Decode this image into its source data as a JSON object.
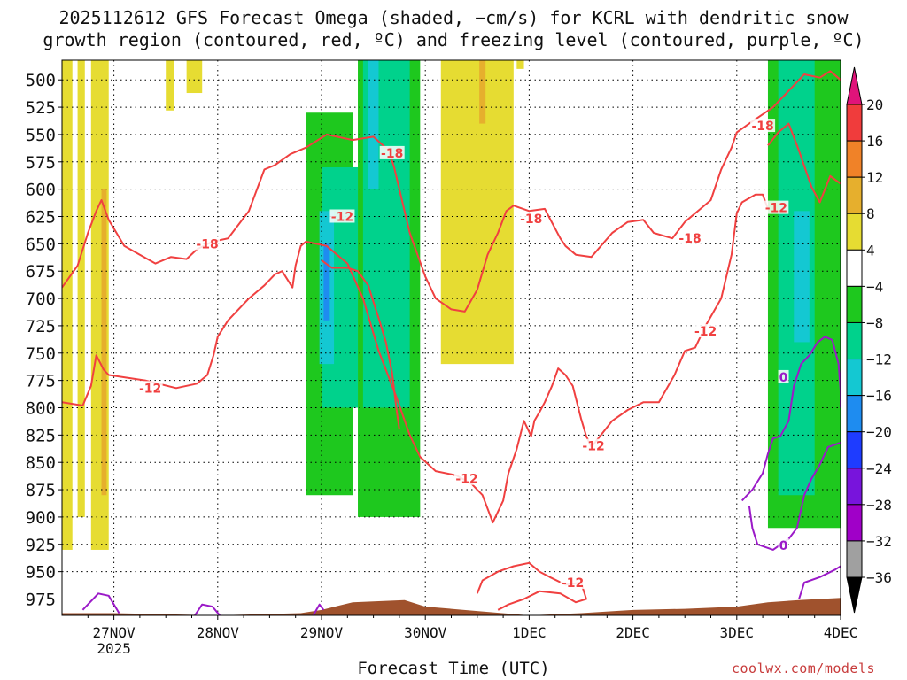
{
  "chart_data": {
    "type": "heatmap",
    "title": "2025112612 GFS Forecast Omega (shaded, −cm/s) for KCRL with dendritic snow",
    "subtitle": "growth region (contoured, red, ºC) and freezing level (contoured, purple, ºC)",
    "xlabel": "Forecast Time (UTC)",
    "ylabel": "",
    "x_ticks": [
      "27NOV",
      "28NOV",
      "29NOV",
      "30NOV",
      "1DEC",
      "2DEC",
      "3DEC",
      "4DEC"
    ],
    "x_tick_sublabel": "2025",
    "x_range_days": [
      26.5,
      34.0
    ],
    "y_ticks": [
      500,
      525,
      550,
      575,
      600,
      625,
      650,
      675,
      700,
      725,
      750,
      775,
      800,
      825,
      850,
      875,
      900,
      925,
      950,
      975
    ],
    "y_range_hpa": [
      482,
      990
    ],
    "grid": true,
    "colorbar": {
      "labels": [
        "20",
        "16",
        "12",
        "8",
        "4",
        "−4",
        "−8",
        "−12",
        "−16",
        "−20",
        "−24",
        "−28",
        "−32",
        "−36"
      ],
      "bins": [
        {
          "min": 20,
          "color": "#e0137a"
        },
        {
          "min": 16,
          "max": 20,
          "color": "#f03c3c"
        },
        {
          "min": 12,
          "max": 16,
          "color": "#f08228"
        },
        {
          "min": 8,
          "max": 12,
          "color": "#e6af2d"
        },
        {
          "min": 4,
          "max": 8,
          "color": "#e6dc32"
        },
        {
          "min": -4,
          "max": 4,
          "color": "#ffffff"
        },
        {
          "min": -8,
          "max": -4,
          "color": "#1ec81e"
        },
        {
          "min": -12,
          "max": -8,
          "color": "#00d28c"
        },
        {
          "min": -16,
          "max": -12,
          "color": "#14c8d2"
        },
        {
          "min": -20,
          "max": -16,
          "color": "#1e8cf0"
        },
        {
          "min": -24,
          "max": -20,
          "color": "#1e3cff"
        },
        {
          "min": -28,
          "max": -24,
          "color": "#7814dc"
        },
        {
          "min": -32,
          "max": -28,
          "color": "#a000c8"
        },
        {
          "min": -36,
          "max": -32,
          "color": "#a0a0a0"
        },
        {
          "max": -36,
          "color": "#000000"
        }
      ]
    },
    "contour_labels": {
      "dgz_minus12": "-12",
      "dgz_minus18": "-18",
      "freezing": "0"
    },
    "dgz_lower_minus12": [
      [
        26.5,
        795
      ],
      [
        26.7,
        798
      ],
      [
        26.78,
        780
      ],
      [
        26.83,
        752
      ],
      [
        26.9,
        765
      ],
      [
        26.95,
        770
      ],
      [
        27.3,
        775
      ],
      [
        27.6,
        782
      ],
      [
        27.8,
        778
      ],
      [
        27.9,
        770
      ],
      [
        27.96,
        752
      ],
      [
        28.0,
        735
      ],
      [
        28.1,
        720
      ],
      [
        28.3,
        700
      ],
      [
        28.45,
        688
      ],
      [
        28.55,
        678
      ],
      [
        28.62,
        675
      ],
      [
        28.72,
        690
      ],
      [
        28.75,
        670
      ],
      [
        28.8,
        652
      ],
      [
        28.85,
        648
      ],
      [
        29.05,
        652
      ],
      [
        29.25,
        668
      ],
      [
        29.4,
        700
      ],
      [
        29.55,
        748
      ],
      [
        29.72,
        790
      ],
      [
        29.85,
        825
      ],
      [
        29.95,
        845
      ],
      [
        30.1,
        858
      ],
      [
        30.3,
        862
      ],
      [
        30.45,
        870
      ],
      [
        30.55,
        880
      ],
      [
        30.65,
        905
      ],
      [
        30.75,
        885
      ],
      [
        30.8,
        860
      ],
      [
        30.88,
        838
      ],
      [
        30.95,
        812
      ],
      [
        31.02,
        826
      ],
      [
        31.05,
        812
      ],
      [
        31.1,
        804
      ],
      [
        31.15,
        795
      ],
      [
        31.22,
        780
      ],
      [
        31.28,
        764
      ],
      [
        31.35,
        770
      ],
      [
        31.42,
        780
      ],
      [
        31.5,
        810
      ],
      [
        31.55,
        826
      ],
      [
        31.6,
        836
      ],
      [
        31.8,
        812
      ],
      [
        31.95,
        802
      ],
      [
        32.1,
        795
      ],
      [
        32.25,
        795
      ],
      [
        32.4,
        770
      ],
      [
        32.5,
        748
      ],
      [
        32.6,
        745
      ],
      [
        32.7,
        725
      ],
      [
        32.85,
        700
      ],
      [
        32.95,
        660
      ],
      [
        33.0,
        622
      ],
      [
        33.05,
        612
      ],
      [
        33.18,
        605
      ],
      [
        33.25,
        605
      ],
      [
        33.3,
        618
      ]
    ],
    "dgz_upper_minus18": [
      [
        26.5,
        690
      ],
      [
        26.65,
        670
      ],
      [
        26.75,
        640
      ],
      [
        26.83,
        620
      ],
      [
        26.88,
        610
      ],
      [
        26.95,
        628
      ],
      [
        27.1,
        652
      ],
      [
        27.25,
        660
      ],
      [
        27.4,
        668
      ],
      [
        27.55,
        662
      ],
      [
        27.7,
        664
      ],
      [
        27.8,
        655
      ],
      [
        27.95,
        648
      ],
      [
        28.1,
        645
      ],
      [
        28.3,
        620
      ],
      [
        28.45,
        582
      ],
      [
        28.55,
        578
      ],
      [
        28.7,
        568
      ],
      [
        28.85,
        562
      ],
      [
        29.05,
        550
      ],
      [
        29.3,
        555
      ],
      [
        29.5,
        552
      ],
      [
        29.65,
        565
      ],
      [
        29.7,
        580
      ],
      [
        29.85,
        640
      ],
      [
        30.0,
        680
      ],
      [
        30.1,
        700
      ],
      [
        30.25,
        710
      ],
      [
        30.38,
        712
      ],
      [
        30.5,
        692
      ],
      [
        30.6,
        660
      ],
      [
        30.7,
        640
      ],
      [
        30.78,
        620
      ],
      [
        30.85,
        615
      ],
      [
        31.0,
        620
      ],
      [
        31.15,
        618
      ],
      [
        31.3,
        645
      ],
      [
        31.35,
        652
      ],
      [
        31.45,
        660
      ],
      [
        31.6,
        662
      ],
      [
        31.8,
        640
      ],
      [
        31.95,
        630
      ],
      [
        32.1,
        628
      ],
      [
        32.2,
        640
      ],
      [
        32.38,
        645
      ],
      [
        32.5,
        630
      ],
      [
        32.65,
        618
      ],
      [
        32.75,
        610
      ],
      [
        32.85,
        582
      ],
      [
        32.95,
        562
      ],
      [
        33.0,
        548
      ],
      [
        33.15,
        538
      ],
      [
        33.35,
        525
      ],
      [
        33.5,
        510
      ],
      [
        33.65,
        495
      ],
      [
        33.8,
        498
      ],
      [
        33.9,
        492
      ],
      [
        34.0,
        500
      ]
    ],
    "dgz_inner_minus12": [
      [
        29.0,
        665
      ],
      [
        29.1,
        672
      ],
      [
        29.25,
        672
      ],
      [
        29.35,
        675
      ],
      [
        29.45,
        688
      ],
      [
        29.55,
        718
      ],
      [
        29.62,
        740
      ],
      [
        29.68,
        768
      ],
      [
        29.72,
        800
      ],
      [
        29.75,
        820
      ]
    ],
    "dgz_right_minus18": [
      [
        33.3,
        560
      ],
      [
        33.4,
        548
      ],
      [
        33.5,
        540
      ],
      [
        33.6,
        565
      ],
      [
        33.72,
        598
      ],
      [
        33.8,
        612
      ],
      [
        33.9,
        588
      ],
      [
        34.0,
        595
      ]
    ],
    "dgz_surface_minus12": [
      [
        30.5,
        970
      ],
      [
        30.55,
        958
      ],
      [
        30.7,
        950
      ],
      [
        30.85,
        945
      ],
      [
        31.0,
        942
      ],
      [
        31.1,
        950
      ],
      [
        31.2,
        955
      ],
      [
        31.35,
        962
      ],
      [
        31.5,
        960
      ],
      [
        31.55,
        975
      ],
      [
        31.45,
        978
      ],
      [
        31.3,
        970
      ],
      [
        31.1,
        968
      ],
      [
        30.95,
        975
      ],
      [
        30.8,
        980
      ],
      [
        30.7,
        985
      ]
    ],
    "freezing_level_0": [
      [
        26.7,
        985
      ],
      [
        26.85,
        970
      ],
      [
        26.95,
        972
      ],
      [
        27.05,
        988
      ]
    ],
    "freezing_level_0_b": [
      [
        27.78,
        990
      ],
      [
        27.85,
        980
      ],
      [
        27.95,
        982
      ],
      [
        28.02,
        990
      ]
    ],
    "freezing_level_0_c": [
      [
        28.92,
        990
      ],
      [
        28.98,
        980
      ],
      [
        29.02,
        985
      ]
    ],
    "freezing_level_0_right": [
      [
        33.05,
        885
      ],
      [
        33.15,
        875
      ],
      [
        33.25,
        860
      ],
      [
        33.3,
        842
      ],
      [
        33.35,
        828
      ],
      [
        33.42,
        826
      ],
      [
        33.5,
        812
      ],
      [
        33.55,
        780
      ],
      [
        33.62,
        760
      ],
      [
        33.7,
        752
      ],
      [
        33.78,
        740
      ],
      [
        33.85,
        735
      ],
      [
        33.92,
        738
      ],
      [
        33.98,
        760
      ],
      [
        34.0,
        785
      ],
      [
        34.0,
        800
      ]
    ],
    "freezing_level_0_right_lower": [
      [
        33.12,
        890
      ],
      [
        33.15,
        910
      ],
      [
        33.2,
        925
      ],
      [
        33.35,
        930
      ],
      [
        33.5,
        920
      ],
      [
        33.58,
        910
      ],
      [
        33.65,
        880
      ],
      [
        33.72,
        865
      ],
      [
        33.8,
        852
      ],
      [
        33.88,
        836
      ],
      [
        34.0,
        832
      ]
    ],
    "freezing_level_0_surface": [
      [
        33.6,
        975
      ],
      [
        33.65,
        960
      ],
      [
        33.8,
        955
      ],
      [
        33.95,
        948
      ],
      [
        34.0,
        945
      ]
    ],
    "omega_shading": [
      {
        "bin": "4 to 8",
        "x": [
          26.5,
          26.6
        ],
        "p": [
          482,
          930
        ]
      },
      {
        "bin": "4 to 8",
        "x": [
          26.65,
          26.72
        ],
        "p": [
          482,
          900
        ]
      },
      {
        "bin": "4 to 8",
        "x": [
          26.78,
          26.95
        ],
        "p": [
          482,
          930
        ]
      },
      {
        "bin": "8 to 12",
        "x": [
          26.88,
          26.93
        ],
        "p": [
          600,
          880
        ]
      },
      {
        "bin": "4 to 8",
        "x": [
          27.5,
          27.58
        ],
        "p": [
          482,
          528
        ]
      },
      {
        "bin": "4 to 8",
        "x": [
          27.7,
          27.85
        ],
        "p": [
          482,
          512
        ]
      },
      {
        "bin": "-8 to -4",
        "x": [
          28.85,
          29.3
        ],
        "p": [
          530,
          880
        ]
      },
      {
        "bin": "-12 to -8",
        "x": [
          29.0,
          29.35
        ],
        "p": [
          580,
          800
        ]
      },
      {
        "bin": "-16 to -12",
        "x": [
          28.98,
          29.12
        ],
        "p": [
          620,
          760
        ]
      },
      {
        "bin": "-20 to -16",
        "x": [
          29.02,
          29.08
        ],
        "p": [
          650,
          720
        ]
      },
      {
        "bin": "-8 to -4",
        "x": [
          29.35,
          29.95
        ],
        "p": [
          482,
          900
        ]
      },
      {
        "bin": "-12 to -8",
        "x": [
          29.4,
          29.85
        ],
        "p": [
          482,
          800
        ]
      },
      {
        "bin": "-16 to -12",
        "x": [
          29.45,
          29.55
        ],
        "p": [
          482,
          600
        ]
      },
      {
        "bin": "4 to 8",
        "x": [
          30.15,
          30.85
        ],
        "p": [
          482,
          760
        ]
      },
      {
        "bin": "8 to 12",
        "x": [
          30.52,
          30.58
        ],
        "p": [
          482,
          540
        ]
      },
      {
        "bin": "4 to 8",
        "x": [
          30.88,
          30.95
        ],
        "p": [
          482,
          490
        ]
      },
      {
        "bin": "4 to 8",
        "x": [
          33.9,
          34.0
        ],
        "p": [
          482,
          520
        ]
      },
      {
        "bin": "-8 to -4",
        "x": [
          33.3,
          34.0
        ],
        "p": [
          482,
          910
        ]
      },
      {
        "bin": "-12 to -8",
        "x": [
          33.4,
          33.75
        ],
        "p": [
          482,
          880
        ]
      },
      {
        "bin": "-16 to -12",
        "x": [
          33.55,
          33.7
        ],
        "p": [
          620,
          740
        ]
      }
    ],
    "terrain_surface_hpa": [
      [
        26.5,
        988
      ],
      [
        27.0,
        988
      ],
      [
        28.0,
        990
      ],
      [
        28.8,
        988
      ],
      [
        29.0,
        985
      ],
      [
        29.3,
        978
      ],
      [
        29.8,
        976
      ],
      [
        30.0,
        982
      ],
      [
        30.5,
        986
      ],
      [
        31.0,
        990
      ],
      [
        31.5,
        988
      ],
      [
        32.0,
        985
      ],
      [
        32.5,
        984
      ],
      [
        33.0,
        982
      ],
      [
        33.3,
        978
      ],
      [
        33.6,
        976
      ],
      [
        34.0,
        974
      ]
    ],
    "terrain_color": "#a0522d"
  },
  "xaxis_title": "Forecast Time (UTC)",
  "credit": "coolwx.com/models"
}
